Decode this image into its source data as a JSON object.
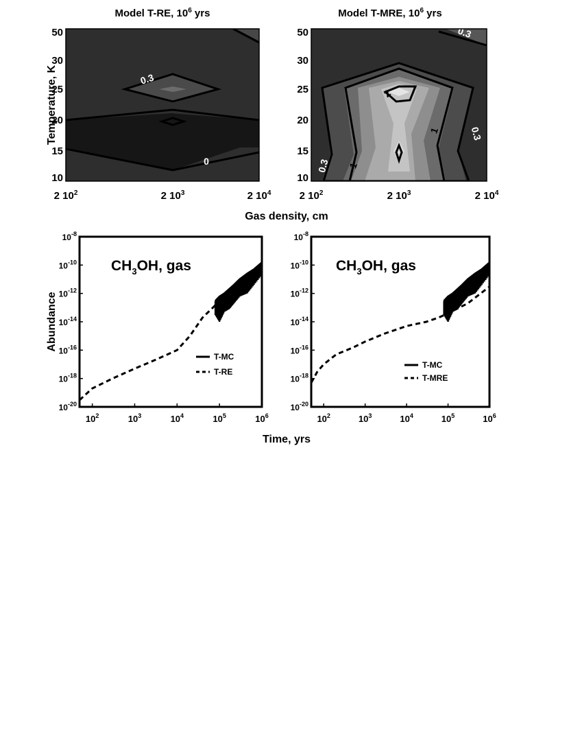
{
  "chart_data": [
    {
      "type": "heatmap",
      "title": "Model T-RE, 10",
      "title_sup": "6",
      "title_tail": " yrs",
      "ylabel": "Temperature, K",
      "x_ticks": [
        "2 10",
        "2 10",
        "2 10"
      ],
      "x_tick_exps": [
        "2",
        "3",
        "4"
      ],
      "x_values": [
        200,
        2000,
        20000
      ],
      "y_ticks": [
        "50",
        "30",
        "25",
        "20",
        "15",
        "10"
      ],
      "y_values": [
        50,
        30,
        25,
        20,
        15,
        10
      ],
      "x_scale": "log",
      "contour_labels": [
        "0.3",
        "0"
      ],
      "contour_levels": [
        0,
        0.3
      ],
      "grayscale": "dark = low, light = high"
    },
    {
      "type": "heatmap",
      "title": "Model T-MRE, 10",
      "title_sup": "6",
      "title_tail": " yrs",
      "ylabel": "",
      "x_ticks": [
        "2 10",
        "2 10",
        "2 10"
      ],
      "x_tick_exps": [
        "2",
        "3",
        "4"
      ],
      "x_values": [
        200,
        2000,
        20000
      ],
      "y_ticks": [
        "50",
        "30",
        "25",
        "20",
        "15",
        "10"
      ],
      "y_values": [
        50,
        30,
        25,
        20,
        15,
        10
      ],
      "x_scale": "log",
      "contour_labels": [
        "0.3",
        "2",
        "1",
        "0.3",
        "0.3",
        "1"
      ],
      "contour_levels": [
        0.3,
        1,
        2
      ],
      "grayscale": "dark = low, light = high"
    },
    {
      "type": "line",
      "annotation_pre": "CH",
      "annotation_sub": "3",
      "annotation_post": "OH, gas",
      "ylabel": "Abundance",
      "x_scale": "log",
      "y_scale": "log",
      "xlim": [
        50,
        1000000
      ],
      "ylim": [
        1e-20,
        1e-08
      ],
      "x_ticks": [
        "10",
        "10",
        "10",
        "10",
        "10"
      ],
      "x_tick_exps": [
        "2",
        "3",
        "4",
        "5",
        "6"
      ],
      "y_ticks": [
        "10",
        "10",
        "10",
        "10",
        "10",
        "10",
        "10"
      ],
      "y_tick_exps": [
        "-8",
        "-10",
        "-12",
        "-14",
        "-16",
        "-18",
        "-20"
      ],
      "legend_position": "lower-right",
      "series": [
        {
          "name": "T-MC",
          "style": "solid",
          "x": [
            80000,
            100000,
            130000,
            170000,
            220000,
            300000,
            450000,
            650000,
            1000000
          ],
          "y": [
            3e-13,
            6e-13,
            1e-12,
            2e-12,
            4e-12,
            1e-11,
            2.5e-11,
            5e-11,
            1.5e-10
          ],
          "scatter_low": [
            3e-14,
            1e-14,
            5e-14,
            8e-14,
            2e-13,
            6e-13,
            1e-12,
            4e-12,
            2e-11
          ]
        },
        {
          "name": "T-RE",
          "style": "dashed",
          "x": [
            50,
            100,
            300,
            1000,
            3000,
            10000,
            20000,
            40000,
            70000,
            100000,
            200000,
            500000,
            1000000
          ],
          "y": [
            3e-20,
            2e-19,
            1e-18,
            5e-18,
            2e-17,
            1e-16,
            1e-15,
            2e-14,
            1e-13,
            3e-13,
            2e-12,
            2e-11,
            1e-10
          ]
        }
      ]
    },
    {
      "type": "line",
      "annotation_pre": "CH",
      "annotation_sub": "3",
      "annotation_post": "OH, gas",
      "ylabel": "",
      "x_scale": "log",
      "y_scale": "log",
      "xlim": [
        50,
        1000000
      ],
      "ylim": [
        1e-20,
        1e-08
      ],
      "x_ticks": [
        "10",
        "10",
        "10",
        "10",
        "10"
      ],
      "x_tick_exps": [
        "2",
        "3",
        "4",
        "5",
        "6"
      ],
      "y_ticks": [
        "10",
        "10",
        "10",
        "10",
        "10",
        "10",
        "10"
      ],
      "y_tick_exps": [
        "-8",
        "-10",
        "-12",
        "-14",
        "-16",
        "-18",
        "-20"
      ],
      "legend_position": "lower-right",
      "series": [
        {
          "name": "T-MC",
          "style": "solid",
          "x": [
            80000,
            100000,
            130000,
            170000,
            220000,
            300000,
            450000,
            650000,
            1000000
          ],
          "y": [
            3e-13,
            6e-13,
            1e-12,
            2e-12,
            4e-12,
            1e-11,
            2.5e-11,
            5e-11,
            1.5e-10
          ],
          "scatter_low": [
            3e-14,
            1e-14,
            5e-14,
            8e-14,
            2e-13,
            6e-13,
            1e-12,
            4e-12,
            2e-11
          ]
        },
        {
          "name": "T-MRE",
          "style": "dashed",
          "x": [
            50,
            70,
            100,
            200,
            500,
            1000,
            3000,
            10000,
            30000,
            60000,
            100000,
            300000,
            1000000
          ],
          "y": [
            5e-19,
            3e-18,
            1e-17,
            5e-17,
            1.5e-16,
            4e-16,
            1.5e-15,
            5e-15,
            1e-14,
            2e-14,
            4e-14,
            2e-13,
            3e-12
          ]
        }
      ]
    }
  ],
  "shared": {
    "density_xlabel": "Gas density, cm",
    "time_xlabel": "Time, yrs"
  }
}
